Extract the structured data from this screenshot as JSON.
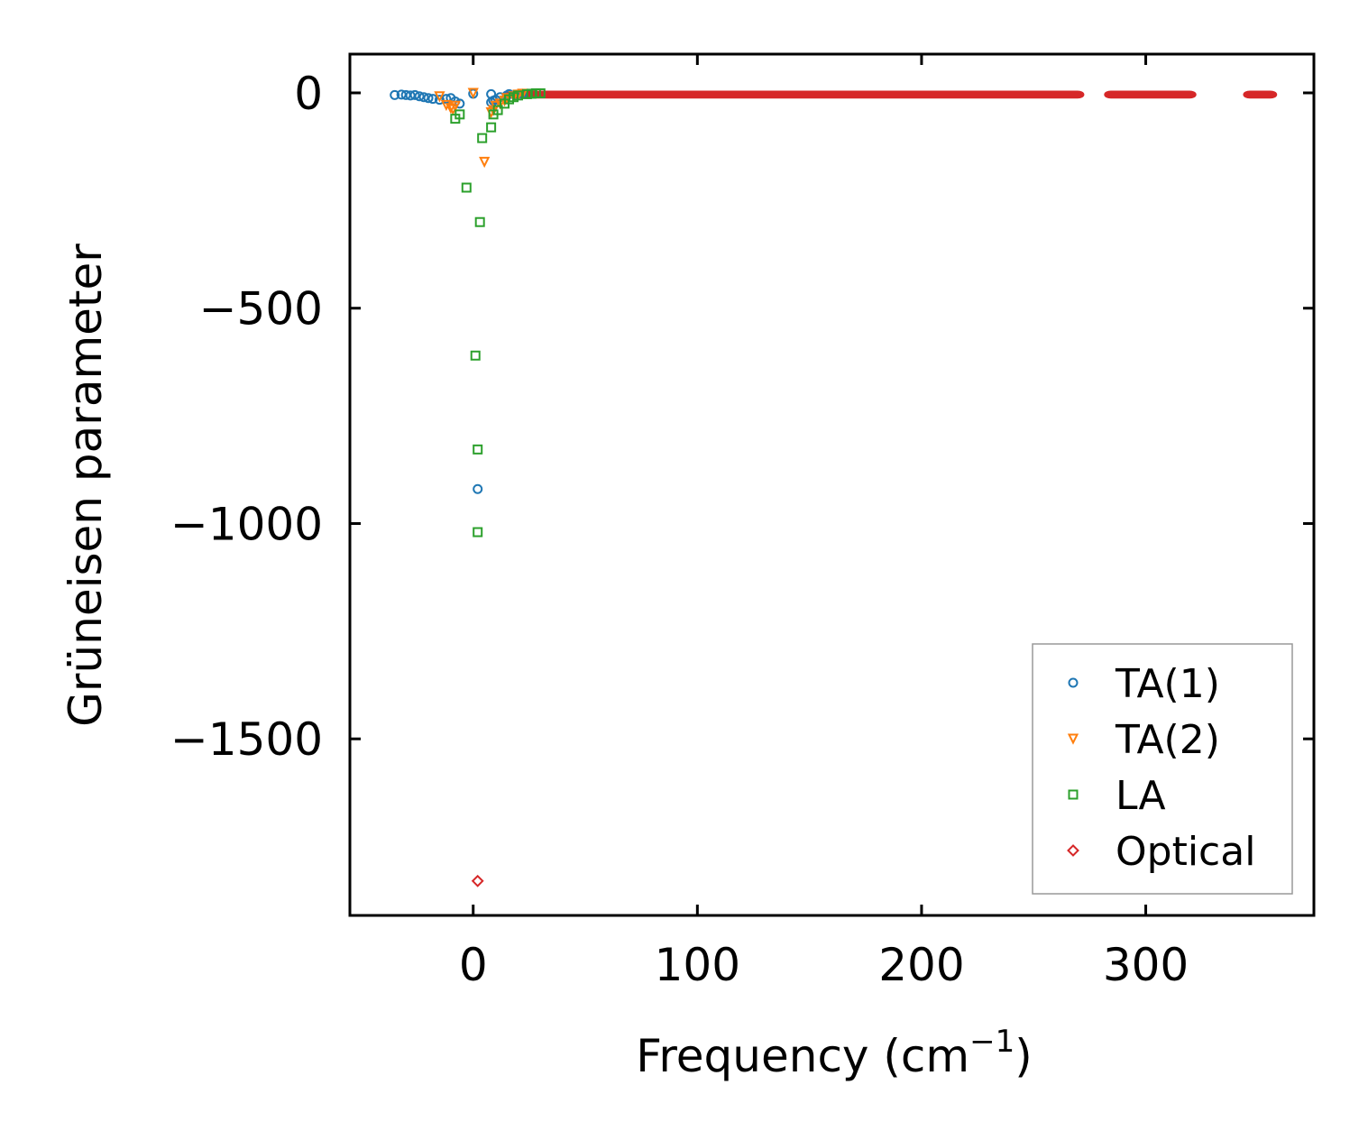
{
  "chart_data": {
    "type": "scatter",
    "title": "",
    "xlabel": "Frequency (cm",
    "xlabel_sup": "−1",
    "xlabel_end": ")",
    "ylabel": "Grüneisen parameter",
    "xlim": [
      -55,
      375
    ],
    "ylim": [
      -1910,
      90
    ],
    "xticks": [
      0,
      100,
      200,
      300
    ],
    "xtick_labels": [
      "0",
      "100",
      "200",
      "300"
    ],
    "yticks": [
      0,
      -500,
      -1000,
      -1500
    ],
    "ytick_labels": [
      "0",
      "−500",
      "−1000",
      "−1500"
    ],
    "legend_position": "lower-right",
    "grid": false,
    "series": [
      {
        "name": "TA(1)",
        "marker": "circle",
        "color": "#1f77b4",
        "points": [
          [
            -35,
            -5
          ],
          [
            -32,
            -4
          ],
          [
            -30,
            -5
          ],
          [
            -28,
            -6
          ],
          [
            -26,
            -5
          ],
          [
            -24,
            -8
          ],
          [
            -22,
            -10
          ],
          [
            -20,
            -12
          ],
          [
            -18,
            -14
          ],
          [
            -15,
            -16
          ],
          [
            -12,
            -14
          ],
          [
            -10,
            -12
          ],
          [
            -8,
            -20
          ],
          [
            -6,
            -25
          ],
          [
            0,
            -2
          ],
          [
            2,
            -920
          ],
          [
            8,
            -3
          ],
          [
            8,
            -22
          ],
          [
            9,
            -18
          ],
          [
            10,
            -16
          ],
          [
            12,
            -10
          ],
          [
            15,
            -6
          ],
          [
            16,
            -3
          ],
          [
            22,
            -2
          ]
        ]
      },
      {
        "name": "TA(2)",
        "marker": "triangle",
        "color": "#ff7f0e",
        "points": [
          [
            -15,
            -8
          ],
          [
            -12,
            -28
          ],
          [
            -10,
            -35
          ],
          [
            -9,
            -38
          ],
          [
            -8,
            -30
          ],
          [
            0,
            0
          ],
          [
            5,
            -160
          ],
          [
            8,
            -45
          ],
          [
            9,
            -40
          ],
          [
            10,
            -30
          ],
          [
            12,
            -25
          ],
          [
            14,
            -18
          ],
          [
            15,
            -12
          ],
          [
            18,
            -8
          ],
          [
            20,
            -4
          ],
          [
            22,
            -2
          ]
        ]
      },
      {
        "name": "LA",
        "marker": "square",
        "color": "#2ca02c",
        "points": [
          [
            -8,
            -60
          ],
          [
            -6,
            -50
          ],
          [
            -3,
            -220
          ],
          [
            1,
            -610
          ],
          [
            2,
            -828
          ],
          [
            2,
            -1020
          ],
          [
            3,
            -300
          ],
          [
            4,
            -105
          ],
          [
            8,
            -80
          ],
          [
            9,
            -50
          ],
          [
            11,
            -40
          ],
          [
            14,
            -25
          ],
          [
            16,
            -15
          ],
          [
            18,
            -10
          ],
          [
            20,
            -6
          ],
          [
            24,
            -3
          ],
          [
            26,
            -2
          ],
          [
            28,
            -1
          ],
          [
            30,
            -1
          ]
        ]
      },
      {
        "name": "Optical",
        "marker": "diamond",
        "color": "#d62728",
        "outlier": [
          2,
          -1830
        ],
        "bands": [
          [
            15,
            272
          ],
          [
            282,
            322
          ],
          [
            344,
            358
          ]
        ],
        "y_spread": [
          -10,
          2
        ]
      }
    ]
  }
}
